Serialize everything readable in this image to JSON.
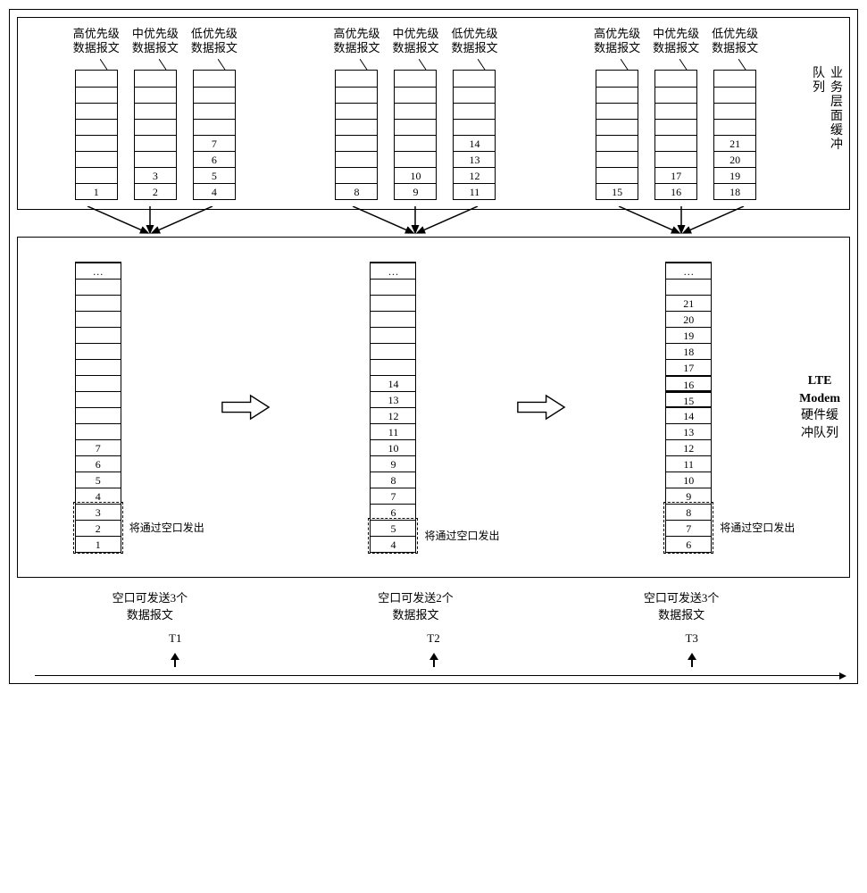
{
  "labels": {
    "high": "高优先级\n数据报文",
    "mid": "中优先级\n数据报文",
    "low": "低优先级\n数据报文",
    "upper_section": "业务层面缓冲队列",
    "lower_section_line1": "LTE",
    "lower_section_line2": "Modem",
    "lower_section_line3": "硬件缓",
    "lower_section_line4": "冲队列",
    "send_via_air": "将通过空口发出",
    "ellipsis": "…"
  },
  "upper": {
    "queue_height": 8,
    "groups": [
      {
        "high": [
          "1"
        ],
        "mid": [
          "2",
          "3"
        ],
        "low": [
          "4",
          "5",
          "6",
          "7"
        ]
      },
      {
        "high": [
          "8"
        ],
        "mid": [
          "9",
          "10"
        ],
        "low": [
          "11",
          "12",
          "13",
          "14"
        ]
      },
      {
        "high": [
          "15"
        ],
        "mid": [
          "16",
          "17"
        ],
        "low": [
          "18",
          "19",
          "20",
          "21"
        ]
      }
    ]
  },
  "lower": {
    "queue_height": 18,
    "columns": [
      {
        "cells": [
          "1",
          "2",
          "3",
          "4",
          "5",
          "6",
          "7"
        ],
        "dash_count": 3,
        "highlight": []
      },
      {
        "cells": [
          "4",
          "5",
          "6",
          "7",
          "8",
          "9",
          "10",
          "11",
          "12",
          "13",
          "14"
        ],
        "dash_count": 2,
        "highlight": []
      },
      {
        "cells": [
          "6",
          "7",
          "8",
          "9",
          "10",
          "11",
          "12",
          "13",
          "14",
          "15",
          "16",
          "17",
          "18",
          "19",
          "20",
          "21"
        ],
        "dash_count": 3,
        "highlight": [
          "15",
          "16"
        ]
      }
    ]
  },
  "captions": [
    "空口可发送3个\n数据报文",
    "空口可发送2个\n数据报文",
    "空口可发送3个\n数据报文"
  ],
  "time_labels": [
    "T1",
    "T2",
    "T3"
  ],
  "colors": {
    "line": "#000000",
    "bg": "#ffffff"
  }
}
